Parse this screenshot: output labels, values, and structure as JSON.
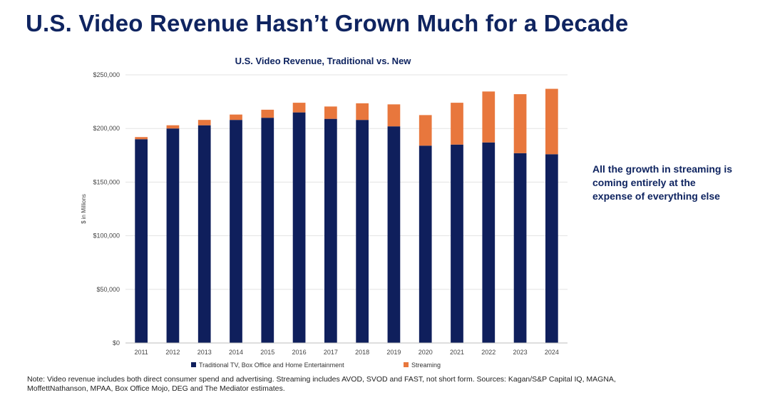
{
  "page": {
    "title": "U.S. Video Revenue Hasn’t Grown Much for a Decade",
    "callout": "All the growth in streaming is coming entirely at the expense of everything else",
    "note": "Note: Video revenue includes both direct consumer spend and advertising. Streaming includes AVOD, SVOD and FAST, not short form. Sources:  Kagan/S&P Capital IQ, MAGNA, MoffettNathanson, MPAA, Box Office Mojo, DEG and The Mediator estimates."
  },
  "colors": {
    "traditional": "#0f1f5c",
    "streaming": "#e8773d",
    "grid": "#e3e3e3",
    "axis": "#bdbdbd"
  },
  "chart_data": {
    "type": "bar",
    "stacked": true,
    "title": "U.S. Video Revenue, Traditional vs. New",
    "xlabel": "",
    "ylabel": "$ in Millions",
    "ylim": [
      0,
      250000
    ],
    "yticks": [
      0,
      50000,
      100000,
      150000,
      200000,
      250000
    ],
    "ytick_labels": [
      "$0",
      "$50,000",
      "$100,000",
      "$150,000",
      "$200,000",
      "$250,000"
    ],
    "categories": [
      "2011",
      "2012",
      "2013",
      "2014",
      "2015",
      "2016",
      "2017",
      "2018",
      "2019",
      "2020",
      "2021",
      "2022",
      "2023",
      "2024"
    ],
    "series": [
      {
        "name": "Traditional TV, Box Office and Home Entertainment",
        "values": [
          190000,
          200000,
          203000,
          208000,
          210000,
          215000,
          209000,
          208000,
          202000,
          184000,
          185000,
          187000,
          177000,
          176000
        ]
      },
      {
        "name": "Streaming",
        "values": [
          2000,
          3000,
          5000,
          5000,
          7500,
          9000,
          11500,
          15500,
          20500,
          28500,
          39000,
          47500,
          55000,
          61000
        ]
      }
    ],
    "legend": "bottom",
    "grid": true
  }
}
